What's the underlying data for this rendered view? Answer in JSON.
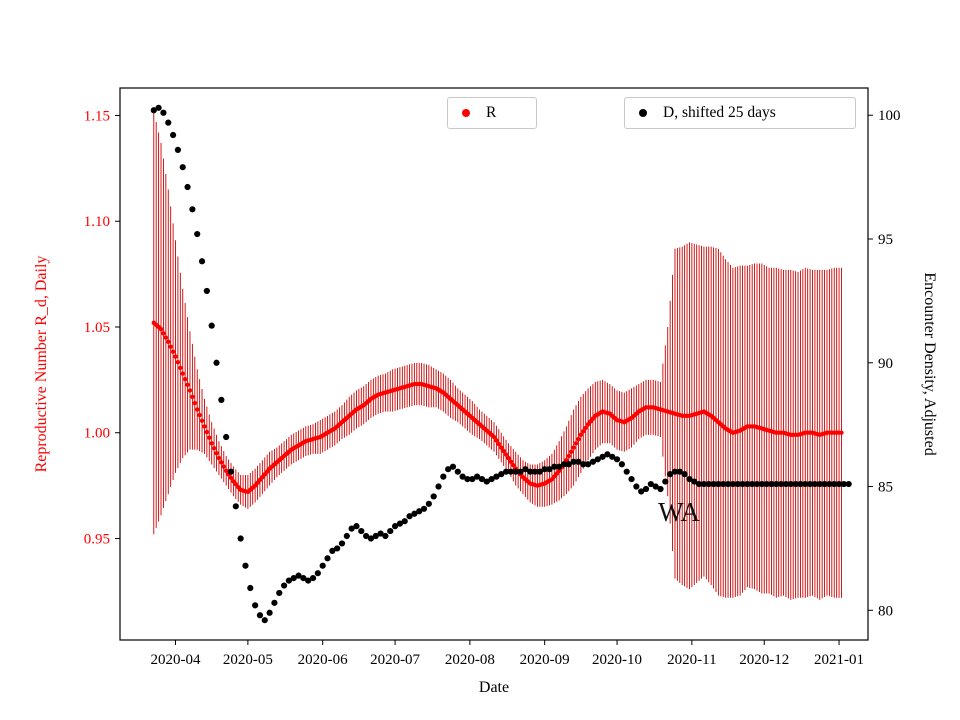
{
  "chart_data": {
    "type": "scatter",
    "title": "",
    "xlabel": "Date",
    "ylabel_left": "Reproductive Number R_d, Daily",
    "ylabel_right": "Encounter Density, Adjusted",
    "x_lim_days": [
      68,
      378
    ],
    "x_ticks": {
      "days": [
        91,
        121,
        152,
        182,
        213,
        244,
        274,
        305,
        335,
        366
      ],
      "labels": [
        "2020-04",
        "2020-05",
        "2020-06",
        "2020-07",
        "2020-08",
        "2020-09",
        "2020-10",
        "2020-11",
        "2020-12",
        "2021-01"
      ]
    },
    "y_left": {
      "ticks": [
        1.15,
        1.1,
        1.05,
        1.0,
        0.95
      ],
      "labels": [
        "1.15",
        "1.10",
        "1.05",
        "1.00",
        "0.95"
      ],
      "lim": [
        0.902,
        1.163
      ],
      "color": "#ff0000"
    },
    "y_right": {
      "ticks": [
        100,
        95,
        90,
        85,
        80
      ],
      "labels": [
        "100",
        "95",
        "90",
        "85",
        "80"
      ],
      "lim": [
        78.8,
        101.1
      ],
      "color": "#000000"
    },
    "grid": false,
    "legend_position": "top-inside",
    "legend": [
      {
        "label": "R",
        "color": "#ff0000"
      },
      {
        "label": "D, shifted 25 days",
        "color": "#000000"
      }
    ],
    "annotation": {
      "text": "WA",
      "day": 291,
      "value_right": 83.6
    },
    "series": [
      {
        "name": "R",
        "axis": "left",
        "color": "#ff0000",
        "errbar_color": "#cc0000",
        "points_format": [
          "day_of_2020",
          "R",
          "err_halfwidth"
        ],
        "points": [
          [
            82,
            1.052,
            0.1
          ],
          [
            85,
            1.049,
            0.088
          ],
          [
            88,
            1.043,
            0.072
          ],
          [
            91,
            1.036,
            0.055
          ],
          [
            94,
            1.028,
            0.04
          ],
          [
            97,
            1.02,
            0.028
          ],
          [
            100,
            1.011,
            0.019
          ],
          [
            103,
            1.003,
            0.013
          ],
          [
            106,
            0.995,
            0.01
          ],
          [
            109,
            0.988,
            0.008
          ],
          [
            112,
            0.982,
            0.007
          ],
          [
            115,
            0.977,
            0.007
          ],
          [
            118,
            0.973,
            0.007
          ],
          [
            121,
            0.972,
            0.008
          ],
          [
            124,
            0.975,
            0.008
          ],
          [
            127,
            0.979,
            0.008
          ],
          [
            130,
            0.983,
            0.008
          ],
          [
            133,
            0.986,
            0.007
          ],
          [
            136,
            0.989,
            0.007
          ],
          [
            139,
            0.992,
            0.007
          ],
          [
            142,
            0.994,
            0.007
          ],
          [
            145,
            0.996,
            0.007
          ],
          [
            148,
            0.997,
            0.007
          ],
          [
            151,
            0.998,
            0.008
          ],
          [
            154,
            1.0,
            0.008
          ],
          [
            157,
            1.002,
            0.008
          ],
          [
            160,
            1.005,
            0.008
          ],
          [
            163,
            1.008,
            0.009
          ],
          [
            166,
            1.011,
            0.009
          ],
          [
            169,
            1.013,
            0.009
          ],
          [
            172,
            1.016,
            0.009
          ],
          [
            175,
            1.018,
            0.009
          ],
          [
            178,
            1.019,
            0.009
          ],
          [
            181,
            1.02,
            0.01
          ],
          [
            184,
            1.021,
            0.01
          ],
          [
            187,
            1.022,
            0.01
          ],
          [
            190,
            1.023,
            0.01
          ],
          [
            193,
            1.023,
            0.01
          ],
          [
            196,
            1.022,
            0.01
          ],
          [
            199,
            1.021,
            0.009
          ],
          [
            202,
            1.019,
            0.009
          ],
          [
            205,
            1.016,
            0.009
          ],
          [
            208,
            1.013,
            0.008
          ],
          [
            211,
            1.01,
            0.008
          ],
          [
            214,
            1.007,
            0.008
          ],
          [
            217,
            1.004,
            0.007
          ],
          [
            220,
            1.001,
            0.007
          ],
          [
            223,
            0.998,
            0.007
          ],
          [
            226,
            0.993,
            0.007
          ],
          [
            229,
            0.988,
            0.007
          ],
          [
            232,
            0.983,
            0.008
          ],
          [
            235,
            0.979,
            0.008
          ],
          [
            238,
            0.976,
            0.009
          ],
          [
            241,
            0.975,
            0.01
          ],
          [
            244,
            0.976,
            0.011
          ],
          [
            247,
            0.978,
            0.012
          ],
          [
            250,
            0.982,
            0.014
          ],
          [
            253,
            0.987,
            0.016
          ],
          [
            256,
            0.993,
            0.018
          ],
          [
            259,
            0.999,
            0.018
          ],
          [
            262,
            1.004,
            0.017
          ],
          [
            265,
            1.008,
            0.016
          ],
          [
            268,
            1.01,
            0.015
          ],
          [
            271,
            1.009,
            0.014
          ],
          [
            274,
            1.006,
            0.014
          ],
          [
            277,
            1.005,
            0.014
          ],
          [
            280,
            1.007,
            0.014
          ],
          [
            283,
            1.01,
            0.013
          ],
          [
            286,
            1.012,
            0.013
          ],
          [
            289,
            1.012,
            0.013
          ],
          [
            292,
            1.011,
            0.013
          ],
          [
            295,
            1.01,
            0.04
          ],
          [
            298,
            1.009,
            0.078
          ],
          [
            301,
            1.008,
            0.08
          ],
          [
            304,
            1.008,
            0.082
          ],
          [
            307,
            1.009,
            0.08
          ],
          [
            310,
            1.01,
            0.078
          ],
          [
            313,
            1.008,
            0.08
          ],
          [
            316,
            1.005,
            0.082
          ],
          [
            319,
            1.002,
            0.08
          ],
          [
            322,
            1.0,
            0.078
          ],
          [
            325,
            1.001,
            0.078
          ],
          [
            328,
            1.003,
            0.076
          ],
          [
            331,
            1.003,
            0.077
          ],
          [
            334,
            1.002,
            0.078
          ],
          [
            337,
            1.001,
            0.077
          ],
          [
            340,
            1.0,
            0.078
          ],
          [
            343,
            1.0,
            0.077
          ],
          [
            346,
            0.999,
            0.078
          ],
          [
            349,
            0.999,
            0.077
          ],
          [
            352,
            1.0,
            0.078
          ],
          [
            355,
            1.0,
            0.077
          ],
          [
            358,
            0.999,
            0.078
          ],
          [
            361,
            1.0,
            0.077
          ],
          [
            364,
            1.0,
            0.078
          ],
          [
            367,
            1.0,
            0.078
          ]
        ]
      },
      {
        "name": "D, shifted 25 days",
        "axis": "right",
        "color": "#000000",
        "points_format": [
          "day_of_2020",
          "D"
        ],
        "points": [
          [
            82,
            100.2
          ],
          [
            84,
            100.3
          ],
          [
            86,
            100.1
          ],
          [
            88,
            99.7
          ],
          [
            90,
            99.2
          ],
          [
            92,
            98.6
          ],
          [
            94,
            97.9
          ],
          [
            96,
            97.1
          ],
          [
            98,
            96.2
          ],
          [
            100,
            95.2
          ],
          [
            102,
            94.1
          ],
          [
            104,
            92.9
          ],
          [
            106,
            91.5
          ],
          [
            108,
            90.0
          ],
          [
            110,
            88.5
          ],
          [
            112,
            87.0
          ],
          [
            114,
            85.6
          ],
          [
            116,
            84.2
          ],
          [
            118,
            82.9
          ],
          [
            120,
            81.8
          ],
          [
            122,
            80.9
          ],
          [
            124,
            80.2
          ],
          [
            126,
            79.8
          ],
          [
            128,
            79.6
          ],
          [
            130,
            79.9
          ],
          [
            132,
            80.3
          ],
          [
            134,
            80.7
          ],
          [
            136,
            81.0
          ],
          [
            138,
            81.2
          ],
          [
            140,
            81.3
          ],
          [
            142,
            81.4
          ],
          [
            144,
            81.3
          ],
          [
            146,
            81.2
          ],
          [
            148,
            81.3
          ],
          [
            150,
            81.5
          ],
          [
            152,
            81.8
          ],
          [
            154,
            82.1
          ],
          [
            156,
            82.4
          ],
          [
            158,
            82.5
          ],
          [
            160,
            82.7
          ],
          [
            162,
            83.0
          ],
          [
            164,
            83.3
          ],
          [
            166,
            83.4
          ],
          [
            168,
            83.2
          ],
          [
            170,
            83.0
          ],
          [
            172,
            82.9
          ],
          [
            174,
            83.0
          ],
          [
            176,
            83.1
          ],
          [
            178,
            83.0
          ],
          [
            180,
            83.2
          ],
          [
            182,
            83.4
          ],
          [
            184,
            83.5
          ],
          [
            186,
            83.6
          ],
          [
            188,
            83.8
          ],
          [
            190,
            83.9
          ],
          [
            192,
            84.0
          ],
          [
            194,
            84.1
          ],
          [
            196,
            84.3
          ],
          [
            198,
            84.6
          ],
          [
            200,
            85.0
          ],
          [
            202,
            85.4
          ],
          [
            204,
            85.7
          ],
          [
            206,
            85.8
          ],
          [
            208,
            85.6
          ],
          [
            210,
            85.4
          ],
          [
            212,
            85.3
          ],
          [
            214,
            85.3
          ],
          [
            216,
            85.4
          ],
          [
            218,
            85.3
          ],
          [
            220,
            85.2
          ],
          [
            222,
            85.3
          ],
          [
            224,
            85.4
          ],
          [
            226,
            85.5
          ],
          [
            228,
            85.6
          ],
          [
            230,
            85.6
          ],
          [
            232,
            85.6
          ],
          [
            234,
            85.6
          ],
          [
            236,
            85.7
          ],
          [
            238,
            85.6
          ],
          [
            240,
            85.6
          ],
          [
            242,
            85.6
          ],
          [
            244,
            85.7
          ],
          [
            246,
            85.7
          ],
          [
            248,
            85.8
          ],
          [
            250,
            85.8
          ],
          [
            252,
            85.9
          ],
          [
            254,
            85.9
          ],
          [
            256,
            86.0
          ],
          [
            258,
            86.0
          ],
          [
            260,
            85.9
          ],
          [
            262,
            85.9
          ],
          [
            264,
            86.0
          ],
          [
            266,
            86.1
          ],
          [
            268,
            86.2
          ],
          [
            270,
            86.3
          ],
          [
            272,
            86.2
          ],
          [
            274,
            86.1
          ],
          [
            276,
            85.9
          ],
          [
            278,
            85.6
          ],
          [
            280,
            85.3
          ],
          [
            282,
            85.0
          ],
          [
            284,
            84.8
          ],
          [
            286,
            84.9
          ],
          [
            288,
            85.1
          ],
          [
            290,
            85.0
          ],
          [
            292,
            84.9
          ],
          [
            294,
            85.2
          ],
          [
            296,
            85.5
          ],
          [
            298,
            85.6
          ],
          [
            300,
            85.6
          ],
          [
            302,
            85.5
          ],
          [
            304,
            85.3
          ],
          [
            306,
            85.2
          ],
          [
            308,
            85.1
          ],
          [
            310,
            85.1
          ],
          [
            312,
            85.1
          ],
          [
            314,
            85.1
          ],
          [
            316,
            85.1
          ],
          [
            318,
            85.1
          ],
          [
            320,
            85.1
          ],
          [
            322,
            85.1
          ],
          [
            324,
            85.1
          ],
          [
            326,
            85.1
          ],
          [
            328,
            85.1
          ],
          [
            330,
            85.1
          ],
          [
            332,
            85.1
          ],
          [
            334,
            85.1
          ],
          [
            336,
            85.1
          ],
          [
            338,
            85.1
          ],
          [
            340,
            85.1
          ],
          [
            342,
            85.1
          ],
          [
            344,
            85.1
          ],
          [
            346,
            85.1
          ],
          [
            348,
            85.1
          ],
          [
            350,
            85.1
          ],
          [
            352,
            85.1
          ],
          [
            354,
            85.1
          ],
          [
            356,
            85.1
          ],
          [
            358,
            85.1
          ],
          [
            360,
            85.1
          ],
          [
            362,
            85.1
          ],
          [
            364,
            85.1
          ],
          [
            366,
            85.1
          ],
          [
            368,
            85.1
          ],
          [
            370,
            85.1
          ]
        ]
      }
    ]
  }
}
